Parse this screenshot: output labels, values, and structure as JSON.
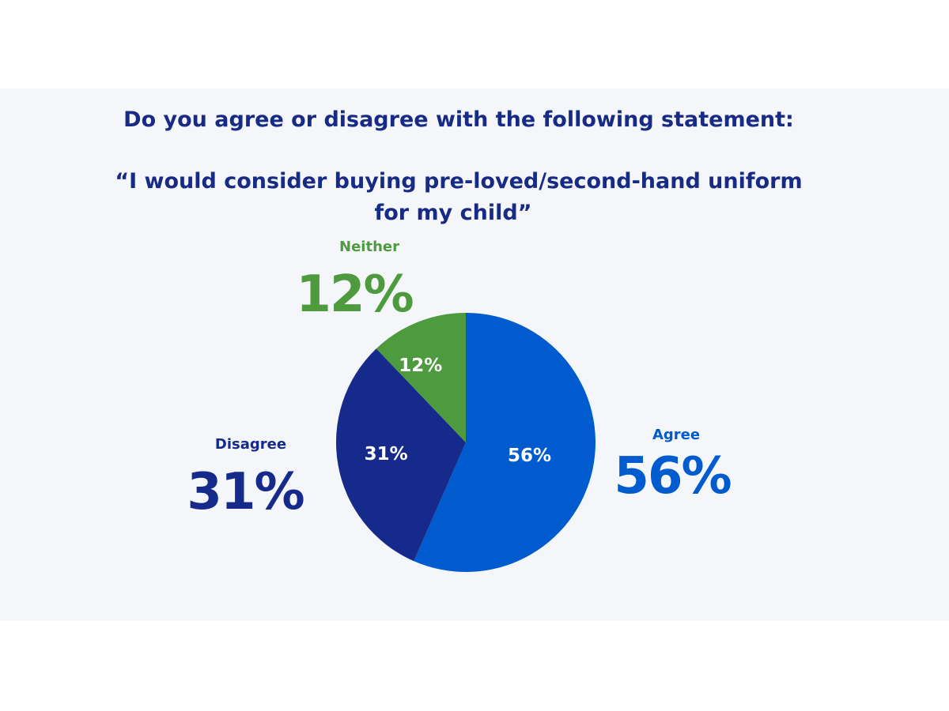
{
  "title": {
    "line1": "Do you agree or disagree with the following statement:",
    "line2": "“I would consider buying pre-loved/second-hand uniform",
    "line3": "for my child”"
  },
  "colors": {
    "agree": "#005bcf",
    "disagree": "#152a8a",
    "neither": "#4e9a3e",
    "title": "#172b85",
    "background": "#f4f6fa"
  },
  "chart_data": {
    "type": "pie",
    "categories": [
      "Agree",
      "Disagree",
      "Neither"
    ],
    "values": [
      56,
      31,
      12
    ],
    "value_labels": [
      "56%",
      "31%",
      "12%"
    ],
    "start_angle_deg": 0,
    "direction": "clockwise"
  }
}
